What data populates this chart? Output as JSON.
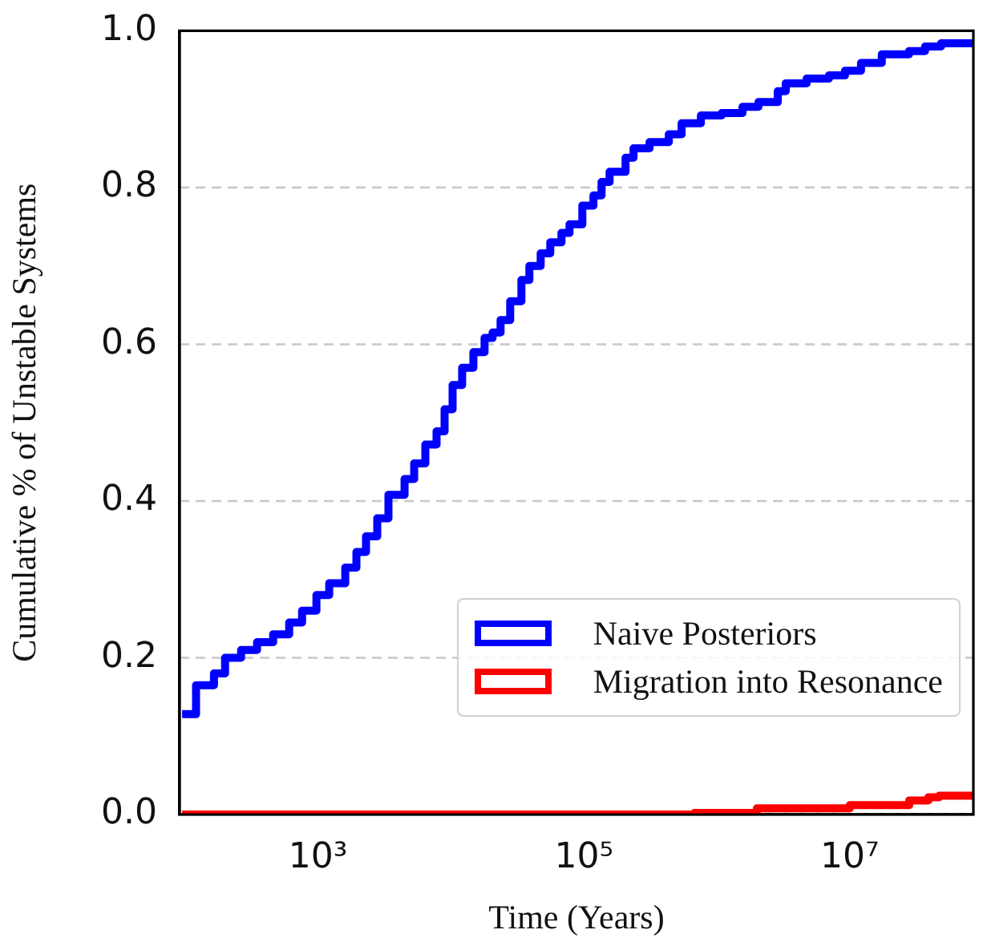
{
  "chart_data": {
    "type": "step",
    "xlabel": "Time (Years)",
    "ylabel": "Cumulative % of Unstable Systems",
    "log": "x",
    "grid": "y",
    "legend": "bottom right",
    "line_style": "solid",
    "marker": "none",
    "xlim": [
      91,
      85000000
    ],
    "ylim": [
      0,
      1
    ],
    "xticks": [
      {
        "value": 1000,
        "label": "10³"
      },
      {
        "value": 100000,
        "label": "10⁵"
      },
      {
        "value": 10000000,
        "label": "10⁷"
      }
    ],
    "yticks": [
      {
        "value": 0,
        "label": "0.0"
      },
      {
        "value": 0.2,
        "label": "0.2"
      },
      {
        "value": 0.4,
        "label": "0.4"
      },
      {
        "value": 0.6,
        "label": "0.6"
      },
      {
        "value": 0.8,
        "label": "0.8"
      },
      {
        "value": 1,
        "label": "1.0"
      }
    ],
    "series": [
      {
        "name": "Naive Posteriors",
        "color": "#0000ff",
        "x": [
          95,
          121,
          165,
          200,
          264,
          348,
          460,
          607,
          759,
          973,
          1214,
          1603,
          1945,
          2297,
          2790,
          3388,
          4478,
          5288,
          6417,
          7794,
          8955,
          10290,
          12140,
          14750,
          17900,
          20570,
          23620,
          27900,
          33880,
          38900,
          47300,
          55850,
          67800,
          77950,
          97300,
          118000,
          135800,
          156000,
          205700,
          236200,
          311900,
          435200,
          543300,
          758500,
          1087000,
          1560000,
          2056000,
          2871000,
          3298000,
          4732000,
          6970000,
          9200000,
          12140000,
          17400000,
          27900000,
          36800000,
          48600000,
          84700000
        ],
        "values": [
          0.128,
          0.165,
          0.18,
          0.2,
          0.21,
          0.22,
          0.23,
          0.245,
          0.26,
          0.28,
          0.295,
          0.315,
          0.335,
          0.355,
          0.378,
          0.408,
          0.428,
          0.448,
          0.472,
          0.489,
          0.517,
          0.548,
          0.57,
          0.59,
          0.608,
          0.615,
          0.631,
          0.655,
          0.682,
          0.7,
          0.716,
          0.73,
          0.742,
          0.753,
          0.777,
          0.79,
          0.807,
          0.82,
          0.838,
          0.85,
          0.858,
          0.868,
          0.882,
          0.892,
          0.895,
          0.903,
          0.909,
          0.923,
          0.933,
          0.939,
          0.943,
          0.949,
          0.959,
          0.97,
          0.974,
          0.98,
          0.984,
          0.986
        ]
      },
      {
        "name": "Migration into Resonance",
        "color": "#ff0000",
        "x": [
          95,
          678000,
          2000000,
          10000000,
          28000000,
          39000000,
          47000000,
          84700000
        ],
        "values": [
          0,
          0.002,
          0.008,
          0.012,
          0.018,
          0.022,
          0.024,
          0.025
        ]
      }
    ]
  }
}
